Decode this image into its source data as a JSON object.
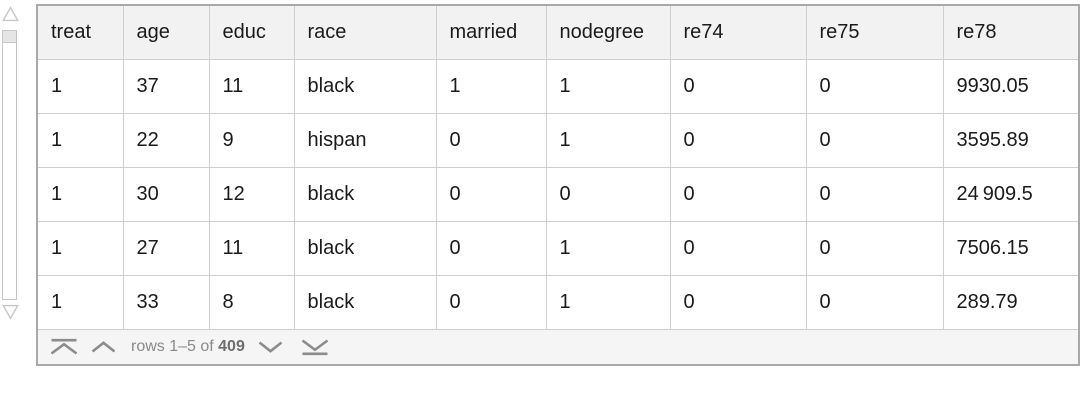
{
  "table": {
    "columns": [
      "treat",
      "age",
      "educ",
      "race",
      "married",
      "nodegree",
      "re74",
      "re75",
      "re78"
    ],
    "rows": [
      [
        "1",
        "37",
        "11",
        "black",
        "1",
        "1",
        "0",
        "0",
        "9930.05"
      ],
      [
        "1",
        "22",
        "9",
        "hispan",
        "0",
        "1",
        "0",
        "0",
        "3595.89"
      ],
      [
        "1",
        "30",
        "12",
        "black",
        "0",
        "0",
        "0",
        "0",
        "24 909.5"
      ],
      [
        "1",
        "27",
        "11",
        "black",
        "0",
        "1",
        "0",
        "0",
        "7506.15"
      ],
      [
        "1",
        "33",
        "8",
        "black",
        "0",
        "1",
        "0",
        "0",
        "289.79"
      ]
    ]
  },
  "pager": {
    "rows_label_prefix": "rows 1–5 of ",
    "rows_total": "409"
  },
  "icons": {
    "scroll_up": "scroll-up-triangle",
    "scroll_down": "scroll-down-triangle",
    "first_page": "jump-to-first-rows-chevron-bar",
    "previous_page": "previous-rows-chevron-up",
    "next_page": "next-rows-chevron-down",
    "last_page": "jump-to-last-rows-chevron-bar"
  },
  "colors": {
    "frame_border": "#a9a9a9",
    "grid_line": "#cfcfcf",
    "header_bg": "#f2f2f2",
    "footer_bg": "#f5f5f5",
    "cell_text": "#1a1a1a",
    "pager_text": "#8a8a8a",
    "pager_total_text": "#6e6e6e",
    "pager_icon": "#8c8c8c",
    "scrollbar_line": "#c6c6c6",
    "scrollbar_thumb": "#e5e5e5"
  }
}
